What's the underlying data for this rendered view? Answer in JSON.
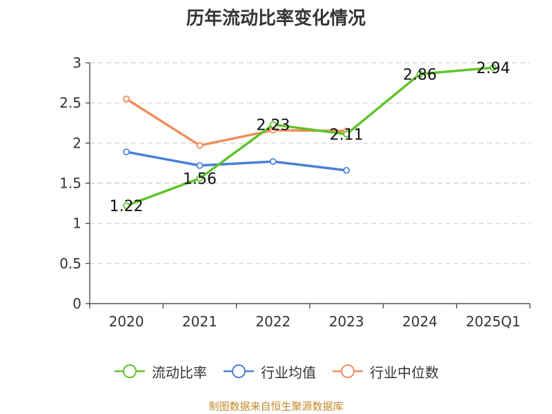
{
  "chart_data": {
    "type": "line",
    "title": "历年流动比率变化情况",
    "categories": [
      "2020",
      "2021",
      "2022",
      "2023",
      "2024",
      "2025Q1"
    ],
    "ylim": [
      0,
      3
    ],
    "yticks": [
      "0",
      "0.5",
      "1",
      "1.5",
      "2",
      "2.5",
      "3"
    ],
    "ytick_values": [
      0,
      0.5,
      1,
      1.5,
      2,
      2.5,
      3
    ],
    "grid": true,
    "legend_position": "bottom",
    "series": [
      {
        "name": "流动比率",
        "color": "#5ec42a",
        "values": [
          1.22,
          1.56,
          2.23,
          2.11,
          2.86,
          2.94
        ],
        "labels": [
          "1.22",
          "1.56",
          "2.23",
          "2.11",
          "2.86",
          "2.94"
        ]
      },
      {
        "name": "行业均值",
        "color": "#4a7fd9",
        "values": [
          1.89,
          1.72,
          1.77,
          1.66,
          null,
          null
        ]
      },
      {
        "name": "行业中位数",
        "color": "#f08d5a",
        "values": [
          2.55,
          1.97,
          2.16,
          2.15,
          null,
          null
        ]
      }
    ]
  },
  "source": "制图数据来自恒生聚源数据库"
}
